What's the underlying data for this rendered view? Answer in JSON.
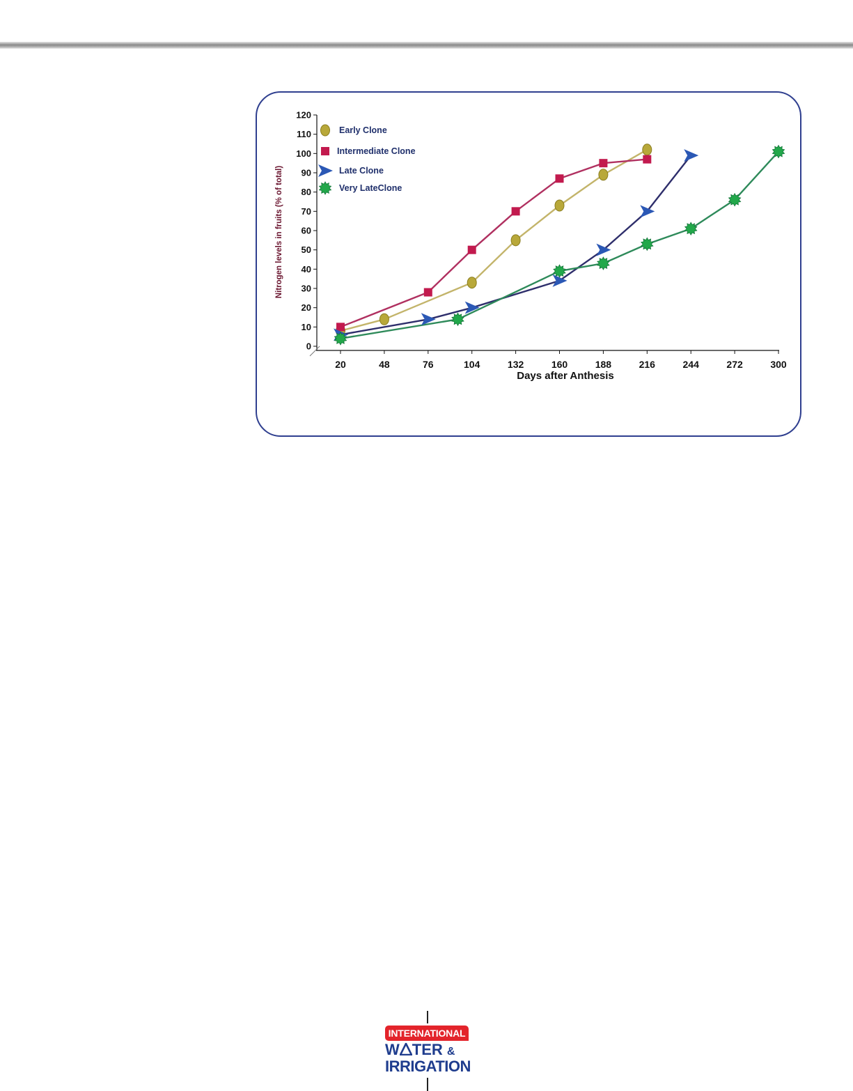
{
  "chart_data": {
    "type": "line",
    "xlabel": "Days after Anthesis",
    "ylabel": "Nitrogen levels in fruits (% of total)",
    "x_ticks": [
      20,
      48,
      76,
      104,
      132,
      160,
      188,
      216,
      244,
      272,
      300
    ],
    "y_ticks": [
      0,
      10,
      20,
      30,
      40,
      50,
      60,
      70,
      80,
      90,
      100,
      110,
      120
    ],
    "xlim": [
      20,
      300
    ],
    "ylim": [
      0,
      120
    ],
    "grid": false,
    "legend_position": "top-left",
    "series": [
      {
        "name": "Early Clone",
        "marker": "ellipse",
        "color": "#b8a83a",
        "line_color": "#c3b46a",
        "points": [
          [
            20,
            8
          ],
          [
            48,
            14
          ],
          [
            104,
            33
          ],
          [
            132,
            55
          ],
          [
            160,
            73
          ],
          [
            188,
            89
          ],
          [
            216,
            102
          ]
        ]
      },
      {
        "name": "Intermediate Clone",
        "marker": "square",
        "color": "#c21a4e",
        "line_color": "#b03060",
        "points": [
          [
            20,
            10
          ],
          [
            76,
            28
          ],
          [
            104,
            50
          ],
          [
            132,
            70
          ],
          [
            160,
            87
          ],
          [
            188,
            95
          ],
          [
            216,
            97
          ]
        ]
      },
      {
        "name": "Late Clone",
        "marker": "arrow",
        "color": "#2b58b5",
        "line_color": "#2e2e6b",
        "points": [
          [
            20,
            6
          ],
          [
            76,
            14
          ],
          [
            104,
            20
          ],
          [
            160,
            34
          ],
          [
            188,
            50
          ],
          [
            216,
            70
          ],
          [
            244,
            99
          ]
        ]
      },
      {
        "name": "Very LateClone",
        "marker": "star",
        "color": "#22a84a",
        "line_color": "#2e8a5a",
        "points": [
          [
            20,
            4
          ],
          [
            95,
            14
          ],
          [
            160,
            39
          ],
          [
            188,
            43
          ],
          [
            216,
            53
          ],
          [
            244,
            61
          ],
          [
            272,
            76
          ],
          [
            300,
            101
          ]
        ]
      }
    ]
  },
  "logo": {
    "line1": "INTERNATIONAL",
    "line2": "W",
    "line2_rest": "TER",
    "amp": "&",
    "line3": "IRRIGATION"
  }
}
